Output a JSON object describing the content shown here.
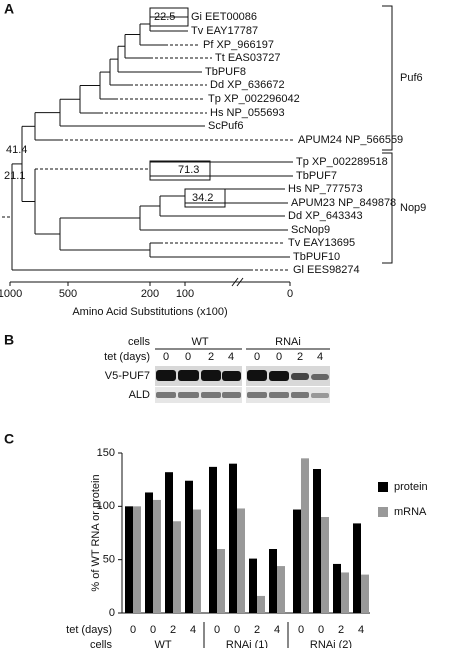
{
  "panel_a": {
    "label": "A",
    "leaves": [
      "Gi EET00086",
      "Tv EAY17787",
      "Pf XP_966197",
      "Tt EAS03727",
      "TbPUF8",
      "Dd XP_636672",
      "Tp XP_002296042",
      "Hs NP_055693",
      "ScPuf6",
      "APUM24 NP_566559",
      "Tp XP_002289518",
      "TbPUF7",
      "Hs NP_777573",
      "APUM23 NP_849878",
      "Dd XP_643343",
      "ScNop9",
      "Tv EAY13695",
      "TbPUF10",
      "Gl EES98274"
    ],
    "node_labels": [
      "22.5",
      "41.4",
      "71.3",
      "34.2",
      "21.1"
    ],
    "clades": [
      "Puf6",
      "Nop9"
    ],
    "axis": {
      "ticks": [
        1000,
        500,
        200,
        100,
        0
      ],
      "label": "Amino Acid Substitutions (x100)"
    }
  },
  "panel_b": {
    "label": "B",
    "cells_label": "cells",
    "tet_label": "tet (days)",
    "groups": [
      "WT",
      "RNAi"
    ],
    "lanes": [
      "0",
      "0",
      "2",
      "4",
      "0",
      "0",
      "2",
      "4"
    ],
    "rows": [
      "V5-PUF7",
      "ALD"
    ]
  },
  "chart_data": {
    "type": "bar",
    "label": "C",
    "ylabel": "% of WT RNA or protein",
    "categories": [
      "0",
      "0",
      "2",
      "4",
      "0",
      "0",
      "2",
      "4",
      "0",
      "0",
      "2",
      "4"
    ],
    "groups": [
      "WT",
      "RNAi (1)",
      "RNAi (2)"
    ],
    "category_axis_label": "tet (days)",
    "group_axis_label": "cells",
    "series": [
      {
        "name": "protein",
        "color": "#000000",
        "values": [
          100,
          113,
          132,
          124,
          137,
          140,
          51,
          60,
          97,
          135,
          46,
          84
        ]
      },
      {
        "name": "mRNA",
        "color": "#999999",
        "values": [
          100,
          106,
          86,
          97,
          60,
          98,
          16,
          44,
          145,
          90,
          38,
          36
        ]
      }
    ],
    "ylim": [
      0,
      150
    ],
    "yticks": [
      0,
      50,
      100,
      150
    ]
  }
}
